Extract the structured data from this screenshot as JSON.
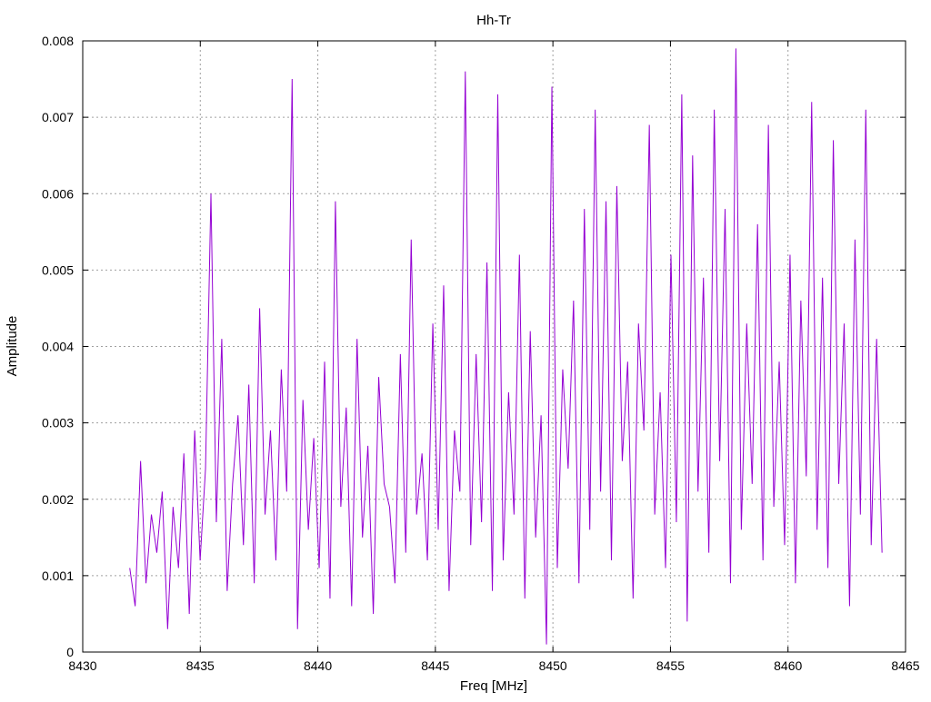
{
  "chart_data": {
    "type": "line",
    "title": "Hh-Tr",
    "xlabel": "Freq [MHz]",
    "ylabel": "Amplitude",
    "xlim": [
      8430,
      8465
    ],
    "ylim": [
      0,
      0.008
    ],
    "x_ticks": [
      8430,
      8435,
      8440,
      8445,
      8450,
      8455,
      8460,
      8465
    ],
    "x_tick_labels": [
      "8430",
      "8435",
      "8440",
      "8445",
      "8450",
      "8455",
      "8460",
      "8465"
    ],
    "y_ticks": [
      0,
      0.001,
      0.002,
      0.003,
      0.004,
      0.005,
      0.006,
      0.007,
      0.008
    ],
    "y_tick_labels": [
      "0",
      "0.001",
      "0.002",
      "0.003",
      "0.004",
      "0.005",
      "0.006",
      "0.007",
      "0.008"
    ],
    "grid": true,
    "legend": "none",
    "series_color": "#9400d3",
    "series": [
      {
        "x_start": 8432,
        "x_end": 8464,
        "values": [
          0.0011,
          0.0006,
          0.0025,
          0.0009,
          0.0018,
          0.0013,
          0.0021,
          0.0003,
          0.0019,
          0.0011,
          0.0026,
          0.0005,
          0.0029,
          0.0012,
          0.0024,
          0.006,
          0.0017,
          0.0041,
          0.0008,
          0.0022,
          0.0031,
          0.0014,
          0.0035,
          0.0009,
          0.0045,
          0.0018,
          0.0029,
          0.0012,
          0.0037,
          0.0021,
          0.0075,
          0.0003,
          0.0033,
          0.0016,
          0.0028,
          0.0011,
          0.0038,
          0.0007,
          0.0059,
          0.0019,
          0.0032,
          0.0006,
          0.0041,
          0.0015,
          0.0027,
          0.0005,
          0.0036,
          0.0022,
          0.0019,
          0.0009,
          0.0039,
          0.0013,
          0.0054,
          0.0018,
          0.0026,
          0.0012,
          0.0043,
          0.0016,
          0.0048,
          0.0008,
          0.0029,
          0.0021,
          0.0076,
          0.0014,
          0.0039,
          0.0017,
          0.0051,
          0.0008,
          0.0073,
          0.0012,
          0.0034,
          0.0018,
          0.0052,
          0.0007,
          0.0042,
          0.0015,
          0.0031,
          0.0001,
          0.0074,
          0.0011,
          0.0037,
          0.0024,
          0.0046,
          0.0009,
          0.0058,
          0.0016,
          0.0071,
          0.0021,
          0.0059,
          0.0012,
          0.0061,
          0.0025,
          0.0038,
          0.0007,
          0.0043,
          0.0029,
          0.0069,
          0.0018,
          0.0034,
          0.0011,
          0.0052,
          0.0017,
          0.0073,
          0.0004,
          0.0065,
          0.0021,
          0.0049,
          0.0013,
          0.0071,
          0.0025,
          0.0058,
          0.0009,
          0.0079,
          0.0016,
          0.0043,
          0.0022,
          0.0056,
          0.0012,
          0.0069,
          0.0019,
          0.0038,
          0.0014,
          0.0052,
          0.0009,
          0.0046,
          0.0023,
          0.0072,
          0.0016,
          0.0049,
          0.0011,
          0.0067,
          0.0022,
          0.0043,
          0.0006,
          0.0054,
          0.0018,
          0.0071,
          0.0014,
          0.0041,
          0.0013
        ]
      }
    ]
  }
}
